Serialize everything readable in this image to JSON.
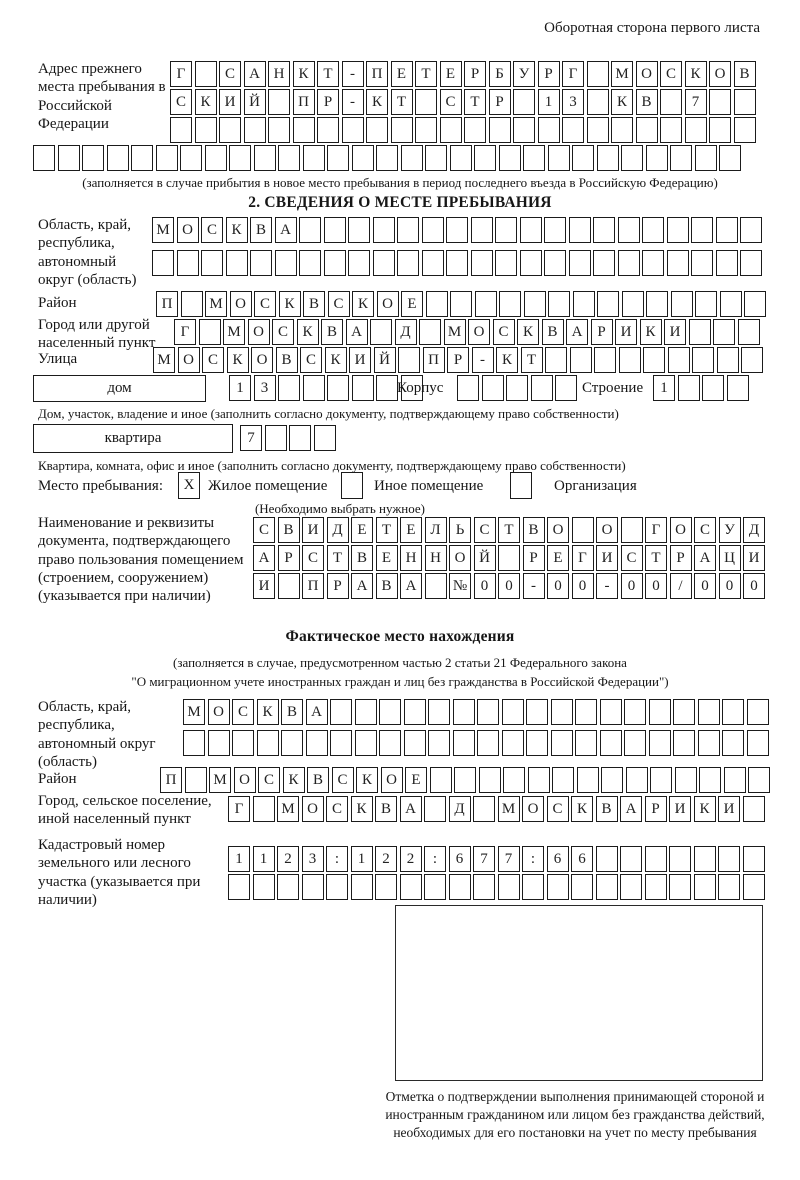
{
  "page": {
    "side_note": "Оборотная сторона первого листа"
  },
  "prev_address": {
    "label": "Адрес прежнего места пребывания в Российской Федерации",
    "row1": {
      "cells": "Г САНКТ-ПЕТЕРБУРГ МОСКОВ",
      "count": 24
    },
    "row2": {
      "cells": "СКИЙ ПР-КТ СТР 13 КВ 7",
      "count": 24
    },
    "row3": {
      "cells": "",
      "count": 24
    },
    "row4": {
      "cells": "",
      "count": 29
    },
    "caption": "(заполняется в случае прибытия в новое место пребывания в период последнего въезда в Российскую Федерацию)"
  },
  "section2": {
    "title": "2. СВЕДЕНИЯ О МЕСТЕ ПРЕБЫВАНИЯ",
    "region_label": "Область, край, республика, автономный округ (область)",
    "region_row1": {
      "cells": "МОСКВА",
      "count": 25
    },
    "region_row2": {
      "cells": "",
      "count": 25
    },
    "district_label": "Район",
    "district_row": {
      "cells": "П МОСКВСКОЕ",
      "count": 25
    },
    "city_label": "Город или другой населенный пункт",
    "city_row": {
      "cells": "Г МОСКВА Д МОСКВАРИКИ",
      "count": 24
    },
    "street_label": "Улица",
    "street_row": {
      "cells": "МОСКОВСКИЙ ПР-КТ",
      "count": 25
    },
    "house": {
      "box_label": "дом",
      "row": {
        "cells": "13",
        "count": 8
      }
    },
    "korpus": {
      "label": "Корпус",
      "row": {
        "cells": "",
        "count": 5
      }
    },
    "stroenie": {
      "label": "Строение",
      "row": {
        "cells": "1",
        "count": 4
      }
    },
    "house_caption": "Дом, участок, владение и иное (заполнить согласно документу, подтверждающему право собственности)",
    "apartment": {
      "box_label": "квартира",
      "row": {
        "cells": "7",
        "count": 4
      }
    },
    "apartment_caption": "Квартира, комната, офис и иное (заполнить согласно документу, подтверждающему право собственности)",
    "stay_type": {
      "label": "Место пребывания:",
      "options": [
        {
          "label": "Жилое помещение",
          "checked": "X"
        },
        {
          "label": "Иное помещение",
          "checked": ""
        },
        {
          "label": "Организация",
          "checked": ""
        }
      ],
      "hint": "(Необходимо выбрать нужное)"
    },
    "doc_label": "Наименование и реквизиты документа, подтверждающего право пользования помещением (строением, сооружением) (указывается при наличии)",
    "doc_row1": {
      "cells": "СВИДЕТЕЛЬСТВО О ГОСУД",
      "count": 21
    },
    "doc_row2": {
      "cells": "АРСТВЕННОЙ РЕГИСТРАЦИ",
      "count": 21
    },
    "doc_row3": {
      "cells": "И ПРАВА №00-00-00/000",
      "count": 21
    }
  },
  "actual_location": {
    "title": "Фактическое место нахождения",
    "caption1": "(заполняется в случае, предусмотренном частью 2 статьи 21 Федерального закона",
    "caption2": "\"О миграционном учете иностранных граждан и лиц без гражданства в Российской Федерации\")",
    "region_label": "Область, край, республика, автономный округ (область)",
    "region_row1": {
      "cells": "МОСКВА",
      "count": 24
    },
    "region_row2": {
      "cells": "",
      "count": 24
    },
    "district_label": "Район",
    "district_row": {
      "cells": "П МОСКВСКОЕ",
      "count": 25
    },
    "city_label": "Город, сельское поселение, иной населенный пункт",
    "city_row": {
      "cells": "Г МОСКВА Д МОСКВАРИКИ",
      "count": 22
    },
    "cadastre_label": "Кадастровый номер земельного или лесного участка (указывается при наличии)",
    "cadastre_row1": {
      "cells": "1123:122:677:66",
      "count": 22
    },
    "cadastre_row2": {
      "cells": "",
      "count": 22
    },
    "stamp_caption": "Отметка о подтверждении выполнения принимающей стороной и иностранным гражданином или лицом без гражданства действий, необходимых для его постановки на учет по месту пребывания"
  }
}
